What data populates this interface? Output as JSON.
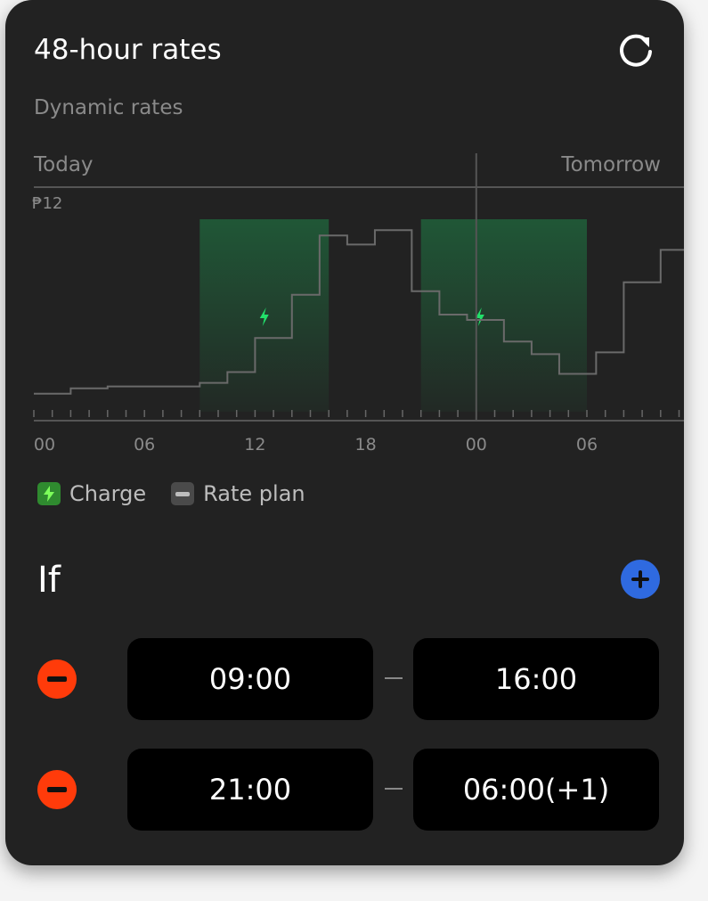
{
  "header": {
    "title": "48-hour rates",
    "refresh_icon": "refresh-icon"
  },
  "subtitle": "Dynamic rates",
  "chart_data": {
    "type": "line",
    "step": true,
    "day_labels": [
      "Today",
      "Tomorrow"
    ],
    "y_label": "₱12",
    "ylim": [
      0,
      12
    ],
    "x_unit": "hours from today 00:00",
    "xlim": [
      0,
      35.3
    ],
    "x_tick_labels": [
      {
        "h": 0,
        "label": "00"
      },
      {
        "h": 6,
        "label": "06"
      },
      {
        "h": 12,
        "label": "12"
      },
      {
        "h": 18,
        "label": "18"
      },
      {
        "h": 24,
        "label": "00"
      },
      {
        "h": 30,
        "label": "06"
      }
    ],
    "series": [
      {
        "steps": [
          [
            0,
            1.5
          ],
          [
            2,
            1.8
          ],
          [
            4,
            1.9
          ],
          [
            9,
            2.1
          ],
          [
            10.5,
            2.7
          ],
          [
            12,
            4.6
          ],
          [
            14,
            7.0
          ],
          [
            15.5,
            10.3
          ],
          [
            17,
            9.8
          ],
          [
            18.5,
            10.6
          ],
          [
            20.5,
            7.2
          ],
          [
            22,
            5.9
          ],
          [
            23.5,
            5.6
          ],
          [
            25.5,
            4.4
          ],
          [
            27,
            3.7
          ],
          [
            28.5,
            2.6
          ],
          [
            30.5,
            3.8
          ],
          [
            32,
            7.7
          ],
          [
            34,
            9.5
          ]
        ],
        "color": "#6a6a6a"
      }
    ],
    "charge_windows": [
      [
        9,
        16
      ],
      [
        21,
        30
      ]
    ],
    "charge_color": "#1f7a44"
  },
  "legend": {
    "charge": "Charge",
    "rate_plan": "Rate plan"
  },
  "if_section": {
    "title": "If",
    "rows": [
      {
        "start": "09:00",
        "end": "16:00"
      },
      {
        "start": "21:00",
        "end": "06:00(+1)"
      }
    ]
  },
  "colors": {
    "accent": "#2f6ae0",
    "remove": "#ff3b0a",
    "charge_icon": "#22e06a"
  }
}
